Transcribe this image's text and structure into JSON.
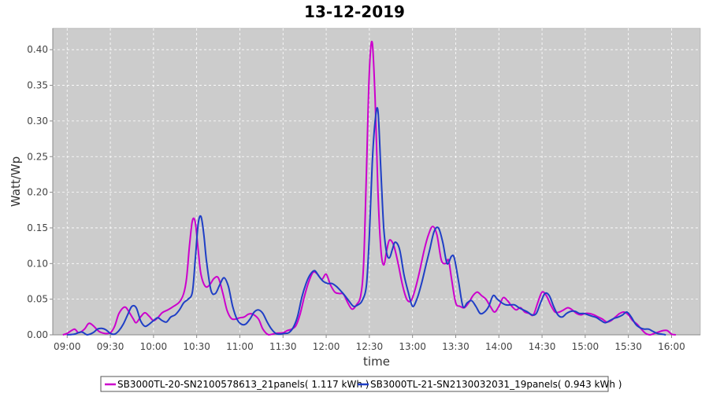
{
  "chart_data": {
    "type": "line",
    "title": "13-12-2019",
    "xlabel": "time",
    "ylabel": "Watt/Wp",
    "ylim": [
      0,
      0.43
    ],
    "yticks": [
      "0.00",
      "0.05",
      "0.10",
      "0.15",
      "0.20",
      "0.25",
      "0.30",
      "0.35",
      "0.40"
    ],
    "xlim": [
      "08:50",
      "16:20"
    ],
    "xticks": [
      "09:00",
      "09:30",
      "10:00",
      "10:30",
      "11:00",
      "11:30",
      "12:00",
      "12:30",
      "13:00",
      "13:30",
      "14:00",
      "14:30",
      "15:00",
      "15:30",
      "16:00"
    ],
    "grid": true,
    "legend_position": "bottom",
    "series": [
      {
        "name": "SB3000TL-20-SN2100578613_21panels( 1.117 kWh )",
        "color": "#cc00cc",
        "points": [
          [
            "08:57",
            0.0
          ],
          [
            "09:00",
            0.002
          ],
          [
            "09:05",
            0.008
          ],
          [
            "09:08",
            0.003
          ],
          [
            "09:12",
            0.008
          ],
          [
            "09:15",
            0.016
          ],
          [
            "09:18",
            0.013
          ],
          [
            "09:22",
            0.005
          ],
          [
            "09:26",
            0.002
          ],
          [
            "09:30",
            0.003
          ],
          [
            "09:33",
            0.012
          ],
          [
            "09:36",
            0.03
          ],
          [
            "09:40",
            0.039
          ],
          [
            "09:43",
            0.032
          ],
          [
            "09:46",
            0.022
          ],
          [
            "09:48",
            0.017
          ],
          [
            "09:51",
            0.025
          ],
          [
            "09:54",
            0.031
          ],
          [
            "09:57",
            0.026
          ],
          [
            "10:00",
            0.02
          ],
          [
            "10:03",
            0.024
          ],
          [
            "10:06",
            0.031
          ],
          [
            "10:10",
            0.035
          ],
          [
            "10:14",
            0.04
          ],
          [
            "10:18",
            0.046
          ],
          [
            "10:21",
            0.058
          ],
          [
            "10:23",
            0.08
          ],
          [
            "10:25",
            0.125
          ],
          [
            "10:27",
            0.16
          ],
          [
            "10:29",
            0.158
          ],
          [
            "10:31",
            0.12
          ],
          [
            "10:33",
            0.085
          ],
          [
            "10:36",
            0.068
          ],
          [
            "10:39",
            0.07
          ],
          [
            "10:42",
            0.079
          ],
          [
            "10:45",
            0.08
          ],
          [
            "10:48",
            0.06
          ],
          [
            "10:51",
            0.035
          ],
          [
            "10:54",
            0.023
          ],
          [
            "10:57",
            0.022
          ],
          [
            "11:00",
            0.024
          ],
          [
            "11:03",
            0.025
          ],
          [
            "11:06",
            0.029
          ],
          [
            "11:09",
            0.029
          ],
          [
            "11:13",
            0.022
          ],
          [
            "11:16",
            0.008
          ],
          [
            "11:20",
            0.0
          ],
          [
            "11:25",
            0.002
          ],
          [
            "11:30",
            0.003
          ],
          [
            "11:33",
            0.006
          ],
          [
            "11:36",
            0.008
          ],
          [
            "11:39",
            0.013
          ],
          [
            "11:42",
            0.03
          ],
          [
            "11:45",
            0.055
          ],
          [
            "11:48",
            0.075
          ],
          [
            "11:51",
            0.088
          ],
          [
            "11:54",
            0.085
          ],
          [
            "11:57",
            0.078
          ],
          [
            "12:00",
            0.085
          ],
          [
            "12:03",
            0.07
          ],
          [
            "12:06",
            0.06
          ],
          [
            "12:09",
            0.058
          ],
          [
            "12:12",
            0.057
          ],
          [
            "12:15",
            0.045
          ],
          [
            "12:18",
            0.036
          ],
          [
            "12:21",
            0.042
          ],
          [
            "12:24",
            0.055
          ],
          [
            "12:26",
            0.1
          ],
          [
            "12:28",
            0.23
          ],
          [
            "12:30",
            0.37
          ],
          [
            "12:32",
            0.41
          ],
          [
            "12:34",
            0.33
          ],
          [
            "12:36",
            0.2
          ],
          [
            "12:38",
            0.12
          ],
          [
            "12:40",
            0.098
          ],
          [
            "12:42",
            0.118
          ],
          [
            "12:44",
            0.133
          ],
          [
            "12:47",
            0.125
          ],
          [
            "12:50",
            0.1
          ],
          [
            "12:53",
            0.07
          ],
          [
            "12:56",
            0.05
          ],
          [
            "12:59",
            0.048
          ],
          [
            "13:02",
            0.065
          ],
          [
            "13:05",
            0.09
          ],
          [
            "13:08",
            0.118
          ],
          [
            "13:11",
            0.14
          ],
          [
            "13:14",
            0.152
          ],
          [
            "13:17",
            0.14
          ],
          [
            "13:20",
            0.105
          ],
          [
            "13:23",
            0.1
          ],
          [
            "13:25",
            0.105
          ],
          [
            "13:27",
            0.08
          ],
          [
            "13:30",
            0.045
          ],
          [
            "13:33",
            0.04
          ],
          [
            "13:36",
            0.038
          ],
          [
            "13:39",
            0.045
          ],
          [
            "13:42",
            0.055
          ],
          [
            "13:45",
            0.06
          ],
          [
            "13:48",
            0.055
          ],
          [
            "13:51",
            0.05
          ],
          [
            "13:54",
            0.04
          ],
          [
            "13:57",
            0.032
          ],
          [
            "14:00",
            0.04
          ],
          [
            "14:03",
            0.052
          ],
          [
            "14:06",
            0.048
          ],
          [
            "14:09",
            0.04
          ],
          [
            "14:12",
            0.035
          ],
          [
            "14:15",
            0.038
          ],
          [
            "14:18",
            0.032
          ],
          [
            "14:21",
            0.03
          ],
          [
            "14:24",
            0.028
          ],
          [
            "14:27",
            0.045
          ],
          [
            "14:30",
            0.06
          ],
          [
            "14:33",
            0.055
          ],
          [
            "14:36",
            0.042
          ],
          [
            "14:39",
            0.032
          ],
          [
            "14:42",
            0.032
          ],
          [
            "14:45",
            0.035
          ],
          [
            "14:48",
            0.038
          ],
          [
            "14:51",
            0.035
          ],
          [
            "14:54",
            0.03
          ],
          [
            "14:57",
            0.028
          ],
          [
            "15:00",
            0.03
          ],
          [
            "15:03",
            0.03
          ],
          [
            "15:06",
            0.028
          ],
          [
            "15:09",
            0.025
          ],
          [
            "15:12",
            0.022
          ],
          [
            "15:15",
            0.018
          ],
          [
            "15:18",
            0.02
          ],
          [
            "15:21",
            0.025
          ],
          [
            "15:24",
            0.03
          ],
          [
            "15:27",
            0.032
          ],
          [
            "15:30",
            0.028
          ],
          [
            "15:33",
            0.02
          ],
          [
            "15:36",
            0.015
          ],
          [
            "15:39",
            0.008
          ],
          [
            "15:42",
            0.002
          ],
          [
            "15:45",
            0.0
          ],
          [
            "15:48",
            0.002
          ],
          [
            "15:51",
            0.004
          ],
          [
            "15:54",
            0.006
          ],
          [
            "15:57",
            0.006
          ],
          [
            "16:00",
            0.001
          ],
          [
            "16:03",
            0.0
          ]
        ]
      },
      {
        "name": "SB3000TL-21-SN2130032031_19panels( 0.943 kWh )",
        "color": "#1f3fc6",
        "points": [
          [
            "09:00",
            0.0
          ],
          [
            "09:05",
            0.001
          ],
          [
            "09:10",
            0.004
          ],
          [
            "09:14",
            0.0
          ],
          [
            "09:18",
            0.003
          ],
          [
            "09:21",
            0.008
          ],
          [
            "09:24",
            0.009
          ],
          [
            "09:27",
            0.007
          ],
          [
            "09:30",
            0.002
          ],
          [
            "09:33",
            0.001
          ],
          [
            "09:36",
            0.006
          ],
          [
            "09:39",
            0.015
          ],
          [
            "09:42",
            0.028
          ],
          [
            "09:45",
            0.04
          ],
          [
            "09:48",
            0.038
          ],
          [
            "09:51",
            0.02
          ],
          [
            "09:54",
            0.012
          ],
          [
            "09:57",
            0.015
          ],
          [
            "10:00",
            0.02
          ],
          [
            "10:03",
            0.024
          ],
          [
            "10:06",
            0.02
          ],
          [
            "10:09",
            0.018
          ],
          [
            "10:12",
            0.025
          ],
          [
            "10:15",
            0.028
          ],
          [
            "10:18",
            0.035
          ],
          [
            "10:21",
            0.045
          ],
          [
            "10:24",
            0.05
          ],
          [
            "10:27",
            0.06
          ],
          [
            "10:29",
            0.105
          ],
          [
            "10:31",
            0.155
          ],
          [
            "10:33",
            0.166
          ],
          [
            "10:35",
            0.14
          ],
          [
            "10:37",
            0.1
          ],
          [
            "10:40",
            0.062
          ],
          [
            "10:43",
            0.058
          ],
          [
            "10:46",
            0.07
          ],
          [
            "10:49",
            0.08
          ],
          [
            "10:52",
            0.068
          ],
          [
            "10:55",
            0.04
          ],
          [
            "10:58",
            0.022
          ],
          [
            "11:01",
            0.015
          ],
          [
            "11:04",
            0.015
          ],
          [
            "11:07",
            0.022
          ],
          [
            "11:10",
            0.032
          ],
          [
            "11:13",
            0.035
          ],
          [
            "11:16",
            0.03
          ],
          [
            "11:19",
            0.018
          ],
          [
            "11:22",
            0.008
          ],
          [
            "11:25",
            0.002
          ],
          [
            "11:28",
            0.001
          ],
          [
            "11:31",
            0.002
          ],
          [
            "11:34",
            0.003
          ],
          [
            "11:37",
            0.01
          ],
          [
            "11:40",
            0.025
          ],
          [
            "11:43",
            0.052
          ],
          [
            "11:46",
            0.072
          ],
          [
            "11:49",
            0.085
          ],
          [
            "11:52",
            0.09
          ],
          [
            "11:55",
            0.082
          ],
          [
            "11:58",
            0.075
          ],
          [
            "12:01",
            0.072
          ],
          [
            "12:04",
            0.072
          ],
          [
            "12:07",
            0.068
          ],
          [
            "12:10",
            0.062
          ],
          [
            "12:13",
            0.055
          ],
          [
            "12:16",
            0.047
          ],
          [
            "12:19",
            0.04
          ],
          [
            "12:22",
            0.042
          ],
          [
            "12:25",
            0.048
          ],
          [
            "12:28",
            0.07
          ],
          [
            "12:30",
            0.14
          ],
          [
            "12:32",
            0.24
          ],
          [
            "12:34",
            0.3
          ],
          [
            "12:36",
            0.314
          ],
          [
            "12:38",
            0.23
          ],
          [
            "12:40",
            0.15
          ],
          [
            "12:42",
            0.115
          ],
          [
            "12:44",
            0.108
          ],
          [
            "12:46",
            0.12
          ],
          [
            "12:48",
            0.13
          ],
          [
            "12:51",
            0.12
          ],
          [
            "12:54",
            0.085
          ],
          [
            "12:57",
            0.06
          ],
          [
            "13:00",
            0.04
          ],
          [
            "13:03",
            0.05
          ],
          [
            "13:06",
            0.07
          ],
          [
            "13:09",
            0.095
          ],
          [
            "13:12",
            0.12
          ],
          [
            "13:15",
            0.145
          ],
          [
            "13:18",
            0.15
          ],
          [
            "13:21",
            0.13
          ],
          [
            "13:24",
            0.1
          ],
          [
            "13:27",
            0.11
          ],
          [
            "13:29",
            0.108
          ],
          [
            "13:32",
            0.075
          ],
          [
            "13:35",
            0.04
          ],
          [
            "13:38",
            0.045
          ],
          [
            "13:41",
            0.048
          ],
          [
            "13:44",
            0.04
          ],
          [
            "13:47",
            0.03
          ],
          [
            "13:50",
            0.032
          ],
          [
            "13:53",
            0.04
          ],
          [
            "13:56",
            0.055
          ],
          [
            "13:59",
            0.05
          ],
          [
            "14:02",
            0.045
          ],
          [
            "14:05",
            0.042
          ],
          [
            "14:08",
            0.042
          ],
          [
            "14:11",
            0.042
          ],
          [
            "14:14",
            0.038
          ],
          [
            "14:17",
            0.035
          ],
          [
            "14:20",
            0.032
          ],
          [
            "14:23",
            0.028
          ],
          [
            "14:26",
            0.03
          ],
          [
            "14:29",
            0.045
          ],
          [
            "14:32",
            0.058
          ],
          [
            "14:35",
            0.055
          ],
          [
            "14:38",
            0.04
          ],
          [
            "14:41",
            0.028
          ],
          [
            "14:44",
            0.025
          ],
          [
            "14:47",
            0.03
          ],
          [
            "14:50",
            0.033
          ],
          [
            "14:53",
            0.033
          ],
          [
            "14:56",
            0.03
          ],
          [
            "14:59",
            0.03
          ],
          [
            "15:02",
            0.028
          ],
          [
            "15:05",
            0.026
          ],
          [
            "15:08",
            0.024
          ],
          [
            "15:11",
            0.02
          ],
          [
            "15:14",
            0.017
          ],
          [
            "15:17",
            0.02
          ],
          [
            "15:20",
            0.023
          ],
          [
            "15:23",
            0.025
          ],
          [
            "15:26",
            0.028
          ],
          [
            "15:29",
            0.032
          ],
          [
            "15:32",
            0.025
          ],
          [
            "15:35",
            0.015
          ],
          [
            "15:38",
            0.01
          ],
          [
            "15:41",
            0.008
          ],
          [
            "15:44",
            0.008
          ],
          [
            "15:47",
            0.005
          ],
          [
            "15:50",
            0.002
          ],
          [
            "15:53",
            0.001
          ],
          [
            "15:56",
            0.0
          ]
        ]
      }
    ]
  }
}
